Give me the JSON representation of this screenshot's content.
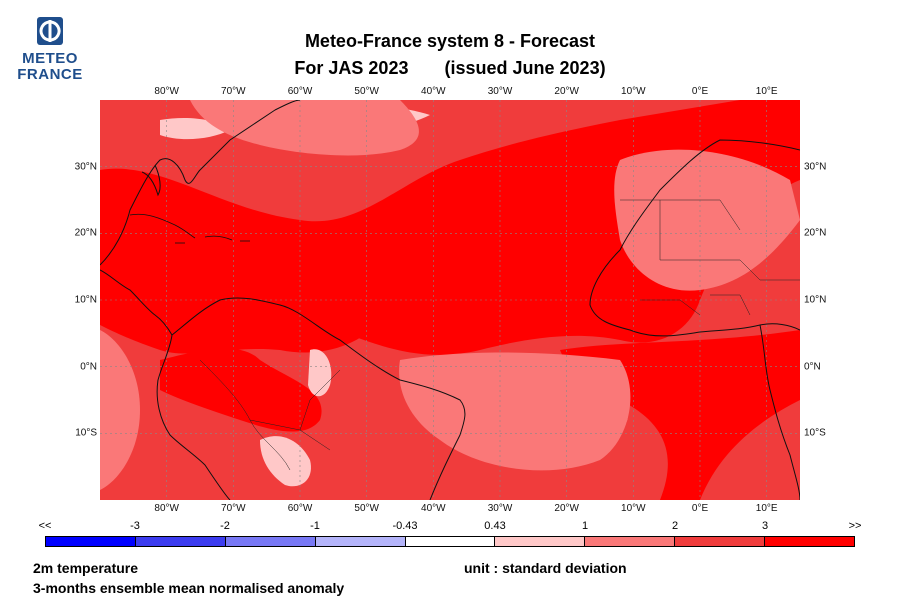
{
  "logo": {
    "line1": "METEO",
    "line2": "FRANCE"
  },
  "title": {
    "line1": "Meteo-France system 8  -  Forecast",
    "line2a": "For JAS 2023",
    "line2b": "(issued June 2023)"
  },
  "map": {
    "longitude_labels": [
      "80°W",
      "70°W",
      "60°W",
      "50°W",
      "40°W",
      "30°W",
      "20°W",
      "10°W",
      "0°E",
      "10°E"
    ],
    "longitude_values": [
      -80,
      -70,
      -60,
      -50,
      -40,
      -30,
      -20,
      -10,
      0,
      10
    ],
    "latitude_labels": [
      "30°N",
      "20°N",
      "10°N",
      "0°N",
      "10°S"
    ],
    "latitude_values": [
      30,
      20,
      10,
      0,
      -10
    ],
    "lon_range": [
      -90,
      15
    ],
    "lat_range": [
      -20,
      40
    ]
  },
  "colorbar": {
    "tick_labels": [
      "<<",
      "-3",
      "-2",
      "-1",
      "-0.43",
      "0.43",
      "1",
      "2",
      "3",
      ">>"
    ],
    "colors": [
      "#0000ff",
      "#3c3cf0",
      "#7878f5",
      "#b4b4fa",
      "#ffffff",
      "#ffc8c8",
      "#fa7878",
      "#f03c3c",
      "#ff0000"
    ]
  },
  "footer": {
    "variable": "2m temperature",
    "description": "3-months ensemble mean normalised anomaly",
    "unit": "unit : standard deviation"
  },
  "colors": {
    "brand": "#1f4e8c",
    "strong_red": "#ff0000",
    "medium_red": "#f03c3c",
    "light_red": "#fa7878",
    "pale_red": "#ffc8c8"
  }
}
